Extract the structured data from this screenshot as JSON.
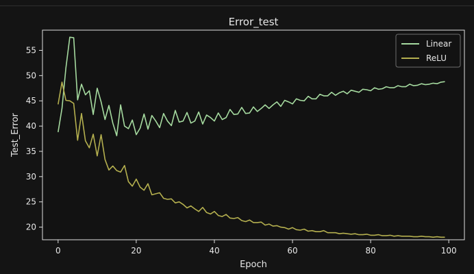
{
  "chart_data": {
    "type": "line",
    "title": "Error_test",
    "xlabel": "Epoch",
    "ylabel": "Test_Error",
    "xlim": [
      -4,
      104
    ],
    "ylim": [
      17.5,
      59
    ],
    "xticks": [
      "0",
      "20",
      "40",
      "60",
      "80",
      "100"
    ],
    "yticks": [
      "20",
      "25",
      "30",
      "35",
      "40",
      "45",
      "50",
      "55"
    ],
    "grid": false,
    "legend": "top-right",
    "background": "#121212",
    "series": [
      {
        "name": "Linear",
        "color": "#a6dba0",
        "x": [
          0,
          1,
          2,
          3,
          4,
          5,
          6,
          7,
          8,
          9,
          10,
          11,
          12,
          13,
          14,
          15,
          16,
          17,
          18,
          19,
          20,
          21,
          22,
          23,
          24,
          25,
          26,
          27,
          28,
          29,
          30,
          31,
          32,
          33,
          34,
          35,
          36,
          37,
          38,
          39,
          40,
          41,
          42,
          43,
          44,
          45,
          46,
          47,
          48,
          49,
          50,
          51,
          52,
          53,
          54,
          55,
          56,
          57,
          58,
          59,
          60,
          61,
          62,
          63,
          64,
          65,
          66,
          67,
          68,
          69,
          70,
          71,
          72,
          73,
          74,
          75,
          76,
          77,
          78,
          79,
          80,
          81,
          82,
          83,
          84,
          85,
          86,
          87,
          88,
          89,
          90,
          91,
          92,
          93,
          94,
          95,
          96,
          97,
          98,
          99
        ],
        "y": [
          38.8,
          43.5,
          51.5,
          57.6,
          57.5,
          45.2,
          48.3,
          46.2,
          47.0,
          42.3,
          47.5,
          44.8,
          41.3,
          44.1,
          40.6,
          38.1,
          44.2,
          40.0,
          39.5,
          41.2,
          38.3,
          39.6,
          42.4,
          39.4,
          42.1,
          41.0,
          39.7,
          42.5,
          41.0,
          40.1,
          43.1,
          40.8,
          41.0,
          42.7,
          40.6,
          41.0,
          42.8,
          40.4,
          42.2,
          41.7,
          41.0,
          42.6,
          41.3,
          41.7,
          43.3,
          42.3,
          42.4,
          43.7,
          42.5,
          42.6,
          43.8,
          42.9,
          43.5,
          44.2,
          43.5,
          44.2,
          44.8,
          43.9,
          45.1,
          44.8,
          44.4,
          45.4,
          45.1,
          45.0,
          45.9,
          45.4,
          45.4,
          46.3,
          46.0,
          46.0,
          46.7,
          46.1,
          46.6,
          46.9,
          46.4,
          47.1,
          46.9,
          46.7,
          47.3,
          47.2,
          47.0,
          47.6,
          47.3,
          47.4,
          47.8,
          47.6,
          47.6,
          48.0,
          47.8,
          47.8,
          48.3,
          48.0,
          48.1,
          48.4,
          48.2,
          48.3,
          48.5,
          48.4,
          48.7,
          48.8
        ]
      },
      {
        "name": "ReLU",
        "color": "#b5b04f",
        "x": [
          0,
          1,
          2,
          3,
          4,
          5,
          6,
          7,
          8,
          9,
          10,
          11,
          12,
          13,
          14,
          15,
          16,
          17,
          18,
          19,
          20,
          21,
          22,
          23,
          24,
          25,
          26,
          27,
          28,
          29,
          30,
          31,
          32,
          33,
          34,
          35,
          36,
          37,
          38,
          39,
          40,
          41,
          42,
          43,
          44,
          45,
          46,
          47,
          48,
          49,
          50,
          51,
          52,
          53,
          54,
          55,
          56,
          57,
          58,
          59,
          60,
          61,
          62,
          63,
          64,
          65,
          66,
          67,
          68,
          69,
          70,
          71,
          72,
          73,
          74,
          75,
          76,
          77,
          78,
          79,
          80,
          81,
          82,
          83,
          84,
          85,
          86,
          87,
          88,
          89,
          90,
          91,
          92,
          93,
          94,
          95,
          96,
          97,
          98,
          99
        ],
        "y": [
          44.3,
          48.7,
          45.1,
          45.0,
          44.5,
          37.2,
          42.5,
          37.1,
          35.7,
          38.4,
          34.1,
          38.3,
          33.4,
          31.3,
          32.1,
          31.2,
          30.9,
          32.2,
          29.0,
          28.1,
          29.5,
          27.9,
          27.3,
          28.6,
          26.4,
          26.6,
          26.8,
          25.7,
          25.5,
          25.6,
          24.8,
          25.0,
          24.5,
          23.8,
          24.2,
          23.6,
          23.1,
          23.9,
          22.9,
          22.6,
          23.1,
          22.3,
          22.1,
          22.5,
          21.8,
          21.7,
          21.9,
          21.3,
          21.1,
          21.4,
          20.9,
          20.9,
          21.0,
          20.4,
          20.6,
          20.2,
          20.3,
          20.0,
          19.9,
          19.6,
          19.9,
          19.5,
          19.4,
          19.6,
          19.2,
          19.3,
          19.1,
          19.1,
          19.3,
          18.9,
          18.9,
          18.9,
          18.7,
          18.8,
          18.7,
          18.6,
          18.7,
          18.5,
          18.5,
          18.6,
          18.4,
          18.4,
          18.5,
          18.3,
          18.3,
          18.4,
          18.2,
          18.3,
          18.2,
          18.2,
          18.2,
          18.1,
          18.1,
          18.2,
          18.1,
          18.1,
          18.0,
          18.1,
          18.0,
          18.0
        ]
      }
    ]
  }
}
